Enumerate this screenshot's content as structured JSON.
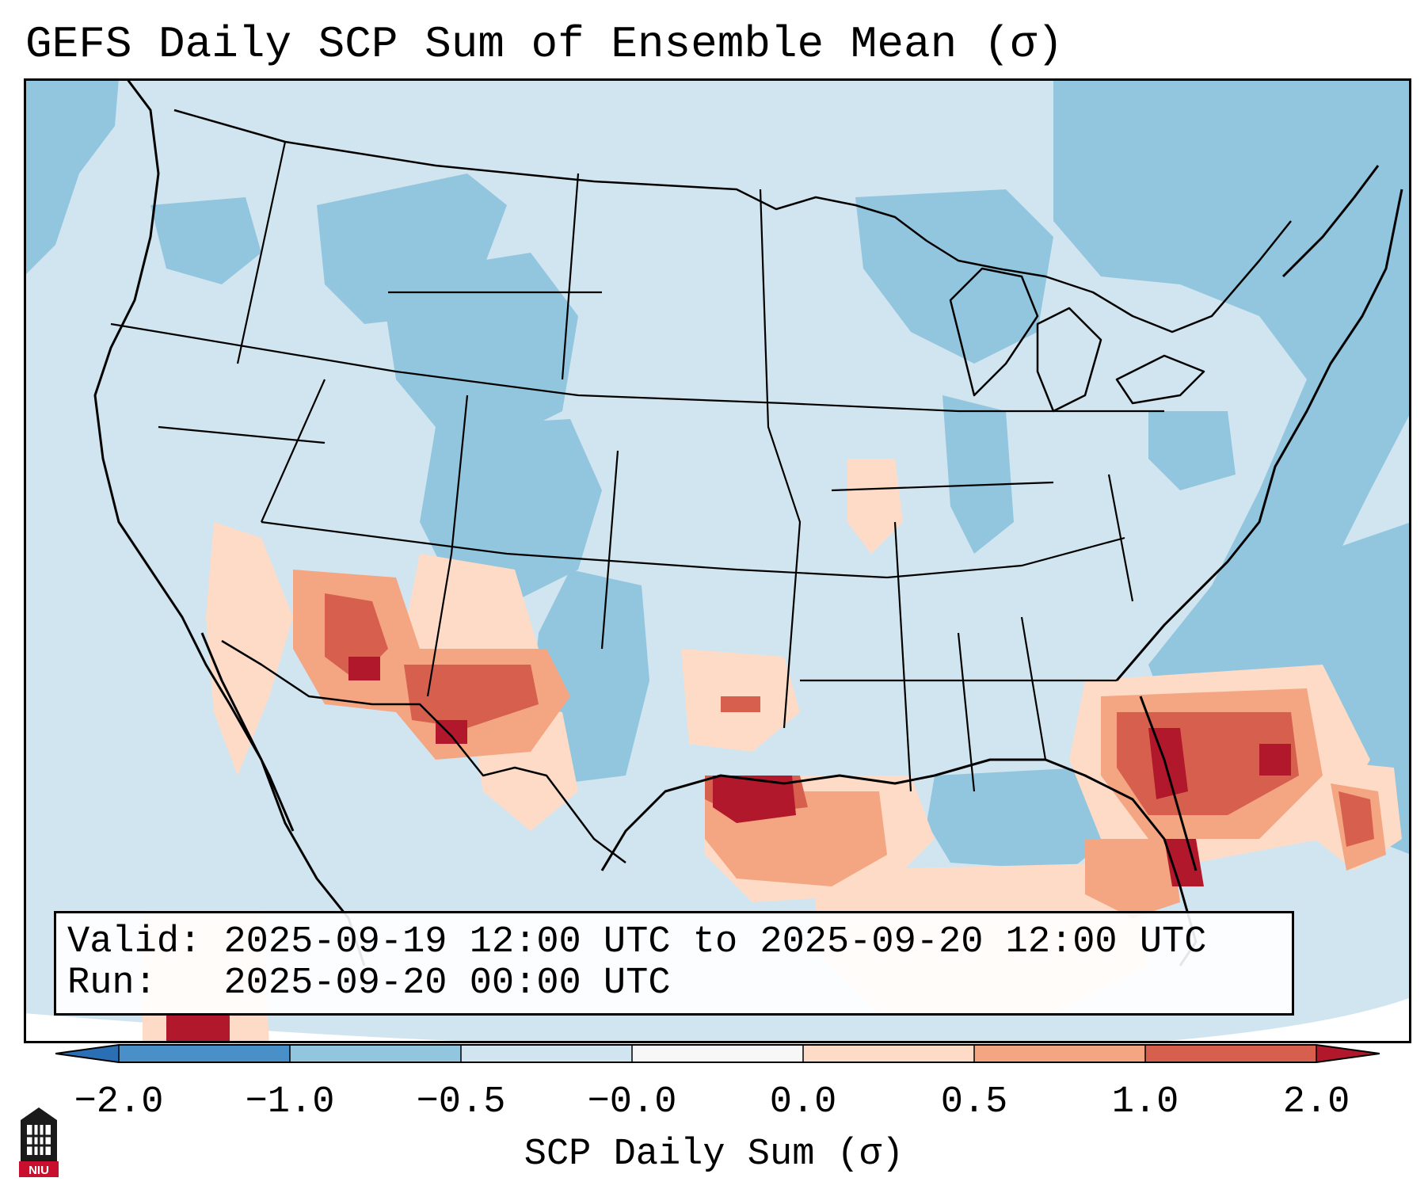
{
  "title": "GEFS Daily SCP Sum of Ensemble Mean (σ)",
  "info": {
    "valid_label": "Valid:",
    "valid_value": "2025-09-19 12:00 UTC to 2025-09-20 12:00 UTC",
    "run_label": "Run:",
    "run_value": "2025-09-20 00:00 UTC"
  },
  "colorbar": {
    "label": "SCP Daily Sum (σ)",
    "ticks": [
      "−2.0",
      "−1.0",
      "−0.5",
      "−0.0",
      "0.0",
      "0.5",
      "1.0",
      "2.0"
    ],
    "bins": [
      {
        "range": "< -2.0",
        "color": "#2a6fb4"
      },
      {
        "range": "-2.0 to -1.0",
        "color": "#4a90c8"
      },
      {
        "range": "-1.0 to -0.5",
        "color": "#92c5de"
      },
      {
        "range": "-0.5 to -0.0",
        "color": "#d1e5f0"
      },
      {
        "range": "-0.0 to 0.0",
        "color": "#f7f7f7"
      },
      {
        "range": "0.0 to 0.5",
        "color": "#fddbc7"
      },
      {
        "range": "0.5 to 1.0",
        "color": "#f4a582"
      },
      {
        "range": "1.0 to 2.0",
        "color": "#d6604d"
      },
      {
        "range": "> 2.0",
        "color": "#b2182b"
      }
    ]
  },
  "logo_text": "NIU"
}
